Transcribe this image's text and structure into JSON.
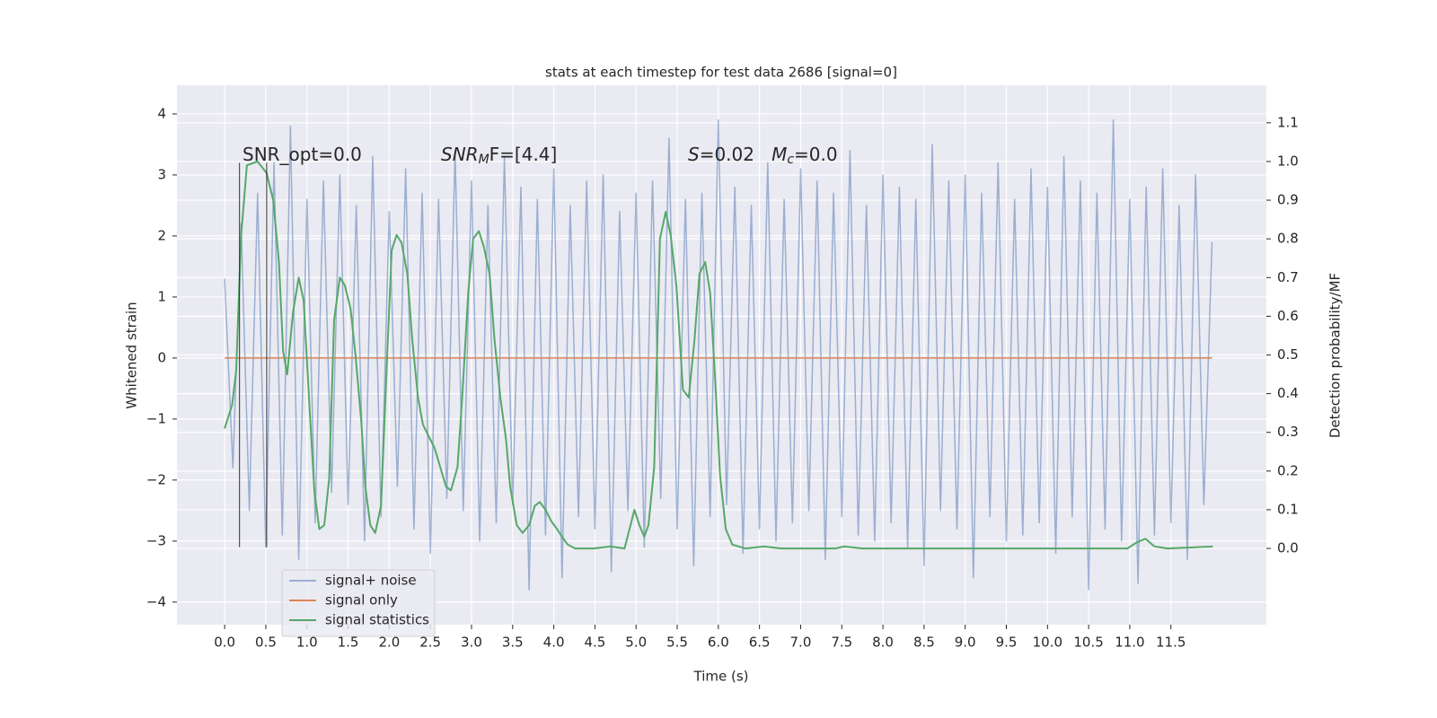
{
  "chart_data": {
    "type": "line",
    "title": "stats at each timestep for test data 2686 [signal=0]",
    "x_label": "Time (s)",
    "y_label": "Whitened strain",
    "y2_label": "Detection probability/MF",
    "xlim": [
      -0.58,
      12.66
    ],
    "ylim": [
      -4.37,
      4.47
    ],
    "y2lim": [
      -0.197,
      1.197
    ],
    "xticks": [
      {
        "value": 0,
        "label": "0.0"
      },
      0.5,
      {
        "value": 1,
        "label": "1.0"
      },
      1.5,
      {
        "value": 2,
        "label": "2.0"
      },
      2.5,
      {
        "value": 3,
        "label": "3.0"
      },
      3.5,
      {
        "value": 4,
        "label": "4.0"
      },
      4.5,
      {
        "value": 5,
        "label": "5.0"
      },
      5.5,
      {
        "value": 6,
        "label": "6.0"
      },
      6.5,
      {
        "value": 7,
        "label": "7.0"
      },
      7.5,
      {
        "value": 8,
        "label": "8.0"
      },
      8.5,
      {
        "value": 9,
        "label": "9.0"
      },
      9.5,
      {
        "value": 10,
        "label": "10.0"
      },
      10.5,
      {
        "value": 11,
        "label": "11.0"
      },
      11.5
    ],
    "yticks": [
      {
        "value": -4,
        "label": "−4"
      },
      {
        "value": -3,
        "label": "−3"
      },
      {
        "value": -2,
        "label": "−2"
      },
      {
        "value": -1,
        "label": "−1"
      },
      0,
      1,
      2,
      3,
      4
    ],
    "y2ticks": [
      {
        "value": 0,
        "label": "0.0"
      },
      0.1,
      0.2,
      0.3,
      0.4,
      0.5,
      0.6,
      0.7,
      0.8,
      0.9,
      {
        "value": 1,
        "label": "1.0"
      },
      1.1
    ],
    "grid": true,
    "legend": "lower left",
    "series": [
      {
        "name": "signal+ noise",
        "color": "#4c72b0",
        "opacity": 0.5,
        "x": [
          0,
          0.1,
          0.2,
          0.3,
          0.4,
          0.5,
          0.6,
          0.7,
          0.8,
          0.9,
          1,
          1.1,
          1.2,
          1.3,
          1.4,
          1.5,
          1.6,
          1.7,
          1.8,
          1.9,
          2,
          2.1,
          2.2,
          2.3,
          2.4,
          2.5,
          2.6,
          2.7,
          2.8,
          2.9,
          3,
          3.1,
          3.2,
          3.3,
          3.4,
          3.5,
          3.6,
          3.7,
          3.8,
          3.9,
          4,
          4.1,
          4.2,
          4.3,
          4.4,
          4.5,
          4.6,
          4.7,
          4.8,
          4.9,
          5,
          5.1,
          5.2,
          5.3,
          5.4,
          5.5,
          5.6,
          5.7,
          5.8,
          5.9,
          6,
          6.1,
          6.2,
          6.3,
          6.4,
          6.5,
          6.6,
          6.7,
          6.8,
          6.9,
          7,
          7.1,
          7.2,
          7.3,
          7.4,
          7.5,
          7.6,
          7.7,
          7.8,
          7.9,
          8,
          8.1,
          8.2,
          8.3,
          8.4,
          8.5,
          8.6,
          8.7,
          8.8,
          8.9,
          9,
          9.1,
          9.2,
          9.3,
          9.4,
          9.5,
          9.6,
          9.7,
          9.8,
          9.9,
          10,
          10.1,
          10.2,
          10.3,
          10.4,
          10.5,
          10.6,
          10.7,
          10.8,
          10.9,
          11,
          11.1,
          11.2,
          11.3,
          11.4,
          11.5,
          11.6,
          11.7,
          11.8,
          11.9,
          12
        ],
        "values": [
          1.3,
          -1.8,
          2.2,
          -2.5,
          2.7,
          -3.1,
          3.2,
          -2.9,
          3.8,
          -3.3,
          2.6,
          -2.7,
          2.9,
          -2.2,
          3.0,
          -2.4,
          2.5,
          -3.0,
          3.3,
          -2.6,
          2.4,
          -2.1,
          3.1,
          -2.8,
          2.7,
          -3.2,
          2.6,
          -2.3,
          3.4,
          -2.5,
          2.9,
          -3.0,
          2.5,
          -2.7,
          3.3,
          -2.4,
          2.8,
          -3.8,
          2.6,
          -2.9,
          3.1,
          -3.6,
          2.5,
          -2.6,
          2.9,
          -2.8,
          3.0,
          -3.5,
          2.4,
          -2.5,
          2.7,
          -3.1,
          2.9,
          -2.3,
          3.6,
          -2.8,
          2.6,
          -3.4,
          2.7,
          -2.6,
          3.9,
          -2.4,
          2.8,
          -3.2,
          2.5,
          -2.8,
          3.2,
          -3.0,
          2.6,
          -2.7,
          3.1,
          -2.5,
          2.9,
          -3.3,
          2.7,
          -2.6,
          3.4,
          -2.9,
          2.5,
          -3.0,
          3.0,
          -2.7,
          2.8,
          -3.1,
          2.6,
          -3.4,
          3.5,
          -2.5,
          2.9,
          -2.8,
          3.0,
          -3.6,
          2.7,
          -2.6,
          3.2,
          -3.0,
          2.6,
          -2.9,
          3.1,
          -2.7,
          2.8,
          -3.2,
          3.3,
          -2.6,
          2.9,
          -3.8,
          2.7,
          -2.8,
          3.9,
          -3.0,
          2.6,
          -3.7,
          2.8,
          -2.9,
          3.1,
          -2.7,
          2.5,
          -3.3,
          3.0,
          -2.4,
          1.9
        ]
      },
      {
        "name": "signal only",
        "color": "#dd8452",
        "x": [
          0,
          12
        ],
        "values": [
          0,
          0
        ]
      },
      {
        "name": "signal statistics",
        "color": "#55a868",
        "axis": "y2",
        "x": [
          0,
          0.09,
          0.14,
          0.2,
          0.27,
          0.4,
          0.51,
          0.59,
          0.66,
          0.71,
          0.76,
          0.83,
          0.9,
          0.96,
          1.03,
          1.09,
          1.15,
          1.21,
          1.27,
          1.33,
          1.4,
          1.46,
          1.53,
          1.59,
          1.66,
          1.71,
          1.77,
          1.83,
          1.9,
          1.97,
          2.03,
          2.09,
          2.15,
          2.22,
          2.28,
          2.35,
          2.41,
          2.48,
          2.55,
          2.62,
          2.69,
          2.75,
          2.83,
          2.89,
          2.96,
          3.02,
          3.09,
          3.15,
          3.22,
          3.28,
          3.35,
          3.42,
          3.47,
          3.55,
          3.62,
          3.7,
          3.77,
          3.83,
          3.9,
          3.97,
          4.04,
          4.1,
          4.17,
          4.26,
          4.48,
          4.69,
          4.86,
          4.98,
          5.04,
          5.1,
          5.15,
          5.22,
          5.29,
          5.36,
          5.42,
          5.49,
          5.57,
          5.64,
          5.71,
          5.77,
          5.84,
          5.9,
          5.96,
          6.02,
          6.09,
          6.17,
          6.33,
          6.55,
          6.77,
          7.42,
          7.53,
          7.75,
          8.19,
          10.04,
          10.97,
          11.08,
          11.19,
          11.3,
          11.46,
          12.01
        ],
        "values": [
          0.31,
          0.37,
          0.46,
          0.81,
          0.99,
          1.0,
          0.97,
          0.9,
          0.74,
          0.51,
          0.45,
          0.61,
          0.7,
          0.64,
          0.37,
          0.15,
          0.05,
          0.06,
          0.18,
          0.59,
          0.7,
          0.68,
          0.62,
          0.5,
          0.33,
          0.16,
          0.06,
          0.04,
          0.11,
          0.47,
          0.77,
          0.81,
          0.79,
          0.71,
          0.54,
          0.39,
          0.32,
          0.29,
          0.26,
          0.21,
          0.16,
          0.15,
          0.21,
          0.4,
          0.66,
          0.8,
          0.82,
          0.78,
          0.71,
          0.54,
          0.39,
          0.28,
          0.16,
          0.06,
          0.04,
          0.06,
          0.11,
          0.12,
          0.1,
          0.07,
          0.05,
          0.03,
          0.01,
          0.0,
          0.0,
          0.005,
          0.0,
          0.1,
          0.06,
          0.03,
          0.06,
          0.21,
          0.8,
          0.87,
          0.81,
          0.68,
          0.41,
          0.39,
          0.54,
          0.71,
          0.74,
          0.66,
          0.44,
          0.19,
          0.05,
          0.01,
          0.0,
          0.005,
          0.0,
          0.0,
          0.005,
          0.0,
          0.0,
          0.0,
          0.0,
          0.015,
          0.025,
          0.005,
          0.0,
          0.005
        ]
      }
    ],
    "vlines": {
      "x": [
        0.18,
        0.51
      ],
      "ymin": -3.1,
      "ymax": 3.2,
      "color": "#262626"
    },
    "annotations": [
      [
        {
          "t": "SNR_opt=0.0"
        }
      ],
      [
        {
          "t": "SNR",
          "italic": true
        },
        {
          "t": "M",
          "italic": true,
          "sub": true
        },
        {
          "t": "F=[4.4]"
        }
      ],
      [
        {
          "t": "S",
          "italic": true
        },
        {
          "t": "=0.02   "
        },
        {
          "t": "M",
          "italic": true
        },
        {
          "t": "c",
          "italic": true,
          "sub": true
        },
        {
          "t": "=0.0"
        }
      ]
    ]
  }
}
